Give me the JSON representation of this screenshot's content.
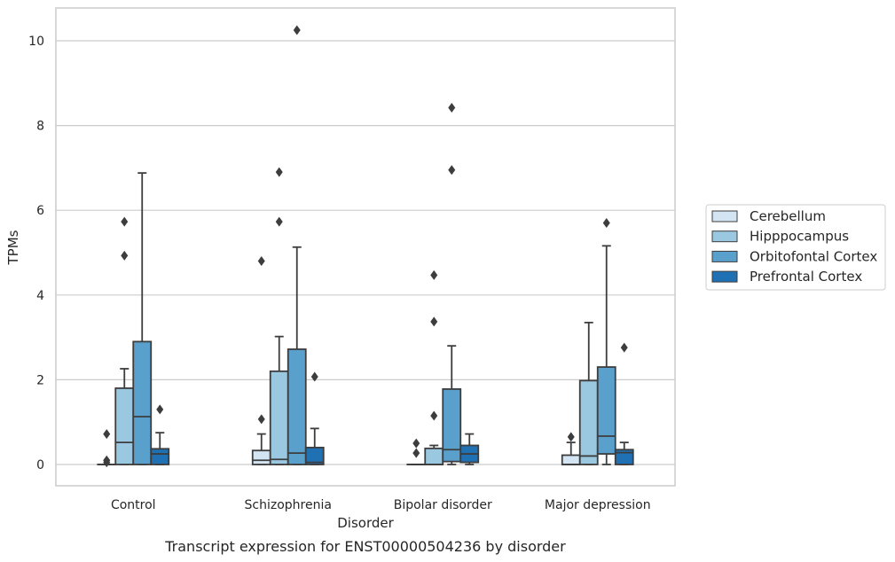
{
  "caption": "Transcript expression for ENST00000504236 by disorder",
  "chart_data": {
    "type": "boxplot",
    "title": "",
    "xlabel": "Disorder",
    "ylabel": "TPMs",
    "ylim": [
      -0.5,
      10.8
    ],
    "yticks": [
      0,
      2,
      4,
      6,
      8,
      10
    ],
    "grid": "horizontal",
    "legend_position": "right, outside plot",
    "categories": [
      "Control",
      "Schizophrenia",
      "Bipolar disorder",
      "Major depression"
    ],
    "series": [
      {
        "name": "Cerebellum",
        "color": "#d3e4f3",
        "boxes": [
          {
            "whisker_low": 0,
            "q1": 0,
            "median": 0,
            "q3": 0,
            "whisker_high": 0,
            "outliers": [
              0.1,
              0.05,
              0.72
            ]
          },
          {
            "whisker_low": 0,
            "q1": 0,
            "median": 0.1,
            "q3": 0.33,
            "whisker_high": 0.72,
            "outliers": [
              1.07,
              4.8
            ]
          },
          {
            "whisker_low": 0,
            "q1": 0,
            "median": 0,
            "q3": 0,
            "whisker_high": 0,
            "outliers": [
              0.27,
              0.5
            ]
          },
          {
            "whisker_low": 0,
            "q1": 0,
            "median": 0,
            "q3": 0.22,
            "whisker_high": 0.52,
            "outliers": [
              0.65
            ]
          }
        ]
      },
      {
        "name": "Hipppocampus",
        "color": "#9ac8e0",
        "boxes": [
          {
            "whisker_low": 0,
            "q1": 0,
            "median": 0.52,
            "q3": 1.8,
            "whisker_high": 2.26,
            "outliers": [
              4.93,
              5.73
            ]
          },
          {
            "whisker_low": 0,
            "q1": 0,
            "median": 0.12,
            "q3": 2.2,
            "whisker_high": 3.02,
            "outliers": [
              5.73,
              6.9
            ]
          },
          {
            "whisker_low": 0,
            "q1": 0,
            "median": 0,
            "q3": 0.38,
            "whisker_high": 0.45,
            "outliers": [
              1.15,
              3.37,
              4.47
            ]
          },
          {
            "whisker_low": 0,
            "q1": 0,
            "median": 0.2,
            "q3": 1.98,
            "whisker_high": 3.35,
            "outliers": []
          }
        ]
      },
      {
        "name": "Orbitofontal Cortex",
        "color": "#5aa0cd",
        "boxes": [
          {
            "whisker_low": 0,
            "q1": 0,
            "median": 1.13,
            "q3": 2.9,
            "whisker_high": 6.88,
            "outliers": []
          },
          {
            "whisker_low": 0,
            "q1": 0,
            "median": 0.27,
            "q3": 2.72,
            "whisker_high": 5.13,
            "outliers": [
              10.25
            ]
          },
          {
            "whisker_low": 0,
            "q1": 0.07,
            "median": 0.35,
            "q3": 1.78,
            "whisker_high": 2.8,
            "outliers": [
              6.95,
              8.42
            ]
          },
          {
            "whisker_low": 0,
            "q1": 0.25,
            "median": 0.67,
            "q3": 2.3,
            "whisker_high": 5.16,
            "outliers": [
              5.7
            ]
          }
        ]
      },
      {
        "name": "Prefrontal Cortex",
        "color": "#2070b4",
        "boxes": [
          {
            "whisker_low": 0,
            "q1": 0,
            "median": 0.25,
            "q3": 0.37,
            "whisker_high": 0.75,
            "outliers": [
              1.3
            ]
          },
          {
            "whisker_low": 0,
            "q1": 0,
            "median": 0.05,
            "q3": 0.4,
            "whisker_high": 0.85,
            "outliers": [
              2.07
            ]
          },
          {
            "whisker_low": 0,
            "q1": 0.05,
            "median": 0.25,
            "q3": 0.45,
            "whisker_high": 0.72,
            "outliers": []
          },
          {
            "whisker_low": 0,
            "q1": 0,
            "median": 0.28,
            "q3": 0.35,
            "whisker_high": 0.52,
            "outliers": [
              2.76
            ]
          }
        ]
      }
    ]
  }
}
